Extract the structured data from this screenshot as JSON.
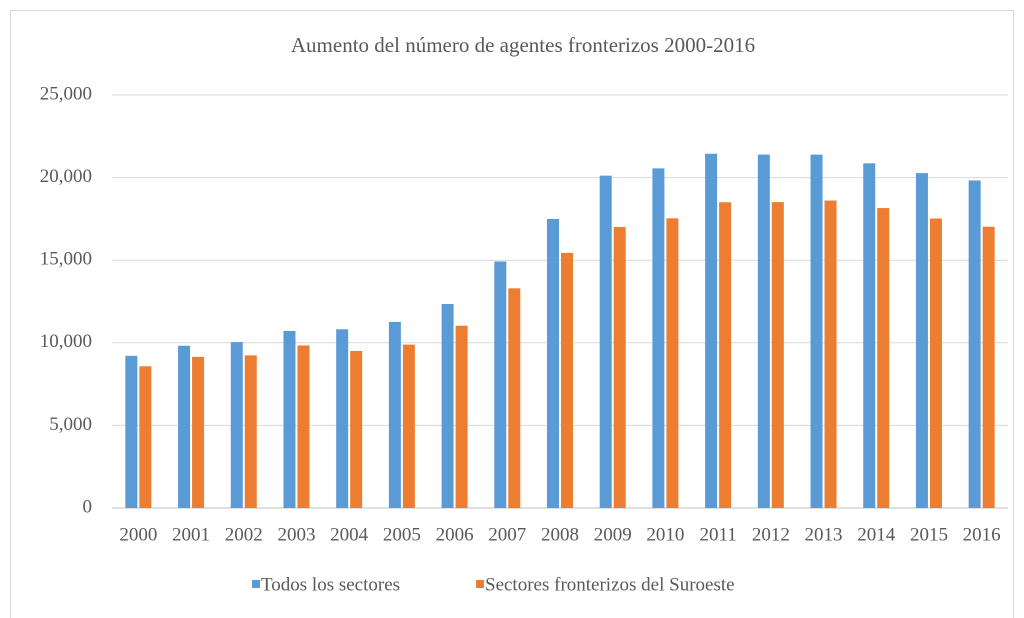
{
  "chart_data": {
    "type": "bar",
    "title": "Aumento del número de agentes fronterizos 2000-2016",
    "categories": [
      "2000",
      "2001",
      "2002",
      "2003",
      "2004",
      "2005",
      "2006",
      "2007",
      "2008",
      "2009",
      "2010",
      "2011",
      "2012",
      "2013",
      "2014",
      "2015",
      "2016"
    ],
    "series": [
      {
        "name": "Todos los sectores",
        "color": "#5b9bd5",
        "values": [
          9212,
          9821,
          10045,
          10717,
          10819,
          11265,
          12349,
          14923,
          17499,
          20119,
          20558,
          21444,
          21394,
          21391,
          20863,
          20273,
          19828
        ]
      },
      {
        "name": "Sectores fronterizos del Suroeste",
        "color": "#ed7d31",
        "values": [
          8580,
          9147,
          9239,
          9840,
          9506,
          9891,
          11032,
          13297,
          15442,
          17011,
          17535,
          18506,
          18516,
          18611,
          18156,
          17522,
          17026
        ]
      }
    ],
    "ylim": [
      0,
      25000
    ],
    "yticks": [
      0,
      {
        "value": 5000,
        "label": "5,000"
      },
      {
        "value": 10000,
        "label": "10,000"
      },
      {
        "value": 15000,
        "label": "15,000"
      },
      {
        "value": 20000,
        "label": "20,000"
      },
      {
        "value": 25000,
        "label": "25,000"
      }
    ],
    "grid": true,
    "legend": "bottom"
  }
}
